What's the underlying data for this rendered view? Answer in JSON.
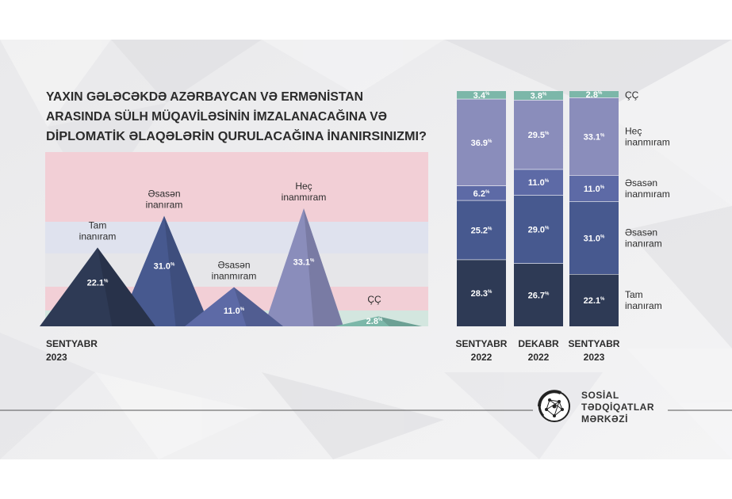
{
  "title_lines": [
    "YAXIN GƏLƏCƏKDƏ AZƏRBAYCAN VƏ ERMƏNİSTAN",
    "ARASINDA SÜLH MÜQAVİLƏSİNİN İMZALANACAĞINA VƏ",
    "DİPLOMATİK ƏLAQƏLƏRİN QURULACAĞINA İNANIRSINIZMI?"
  ],
  "colors": {
    "tam": "#2e3a55",
    "esasen_inaniram": "#47598f",
    "esasen_inanmiram": "#5d6aa6",
    "hec": "#8a8dbb",
    "cc": "#7cb7a9",
    "band_pink": "#f2cfd6",
    "band_lav": "#dfe2ee",
    "band_grey": "#e6e6e9",
    "band_mint": "#d3e6df"
  },
  "chart_data": [
    {
      "type": "area",
      "name": "sentyabr-2023-peaks",
      "period_label": [
        "SENTYABR",
        "2023"
      ],
      "categories": [
        "Tam inanıram",
        "Əsasən inanıram",
        "Əsasən inanmıram",
        "Heç inanmıram",
        "ÇÇ"
      ],
      "category_lines": [
        [
          "Tam",
          "inanıram"
        ],
        [
          "Əsasən",
          "inanıram"
        ],
        [
          "Əsasən",
          "inanmıram"
        ],
        [
          "Heç",
          "inanmıram"
        ],
        [
          "ÇÇ"
        ]
      ],
      "values": [
        22.1,
        31.0,
        11.0,
        33.1,
        2.8
      ],
      "value_labels": [
        "22.1%",
        "31.0%",
        "11.0%",
        "33.1%",
        "2.8%"
      ]
    },
    {
      "type": "bar",
      "stacked": true,
      "categories": [
        [
          "SENTYABR",
          "2022"
        ],
        [
          "DEKABR",
          "2022"
        ],
        [
          "SENTYABR",
          "2023"
        ]
      ],
      "series": [
        {
          "name": "ÇÇ",
          "name_lines": [
            "ÇÇ"
          ],
          "values": [
            3.4,
            3.8,
            2.8
          ],
          "value_labels": [
            "3.4%",
            "3.8%",
            "2.8%"
          ]
        },
        {
          "name": "Heç inanmıram",
          "name_lines": [
            "Heç",
            "inanmıram"
          ],
          "values": [
            36.9,
            29.5,
            33.1
          ],
          "value_labels": [
            "36.9%",
            "29.5%",
            "33.1%"
          ]
        },
        {
          "name": "Əsasən inanmıram",
          "name_lines": [
            "Əsasən",
            "inanmıram"
          ],
          "values": [
            6.2,
            11.0,
            11.0
          ],
          "value_labels": [
            "6.2%",
            "11.0%",
            "11.0%"
          ]
        },
        {
          "name": "Əsasən inanıram",
          "name_lines": [
            "Əsasən",
            "inanıram"
          ],
          "values": [
            25.2,
            29.0,
            31.0
          ],
          "value_labels": [
            "25.2%",
            "29.0%",
            "31.0%"
          ]
        },
        {
          "name": "Tam inanıram",
          "name_lines": [
            "Tam",
            "inanıram"
          ],
          "values": [
            28.3,
            26.7,
            22.1
          ],
          "value_labels": [
            "28.3%",
            "26.7%",
            "22.1%"
          ]
        }
      ]
    }
  ],
  "logo": {
    "lines": [
      "SOSİAL",
      "TƏDQİQATLAR",
      "MƏRKƏZİ"
    ]
  }
}
